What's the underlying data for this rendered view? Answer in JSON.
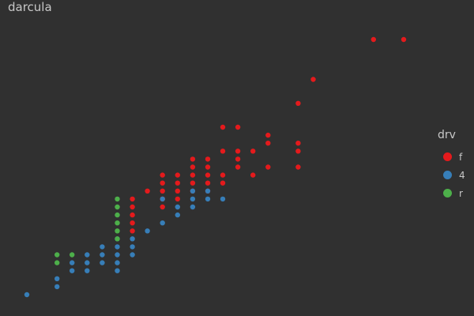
{
  "title": "darcula",
  "chart_data": {
    "type": "scatter",
    "title": "darcula",
    "xlabel": "",
    "ylabel": "",
    "xlim": [
      1.5,
      7.1
    ],
    "ylim": [
      9,
      45
    ],
    "grid": false,
    "legend": {
      "title": "drv",
      "position": "right",
      "entries": [
        {
          "label": "f",
          "color": "#e41a1c"
        },
        {
          "label": "4",
          "color": "#377eb8"
        },
        {
          "label": "r",
          "color": "#4daf4a"
        }
      ]
    },
    "series": [
      {
        "name": "f",
        "color": "#e41a1c",
        "points": [
          [
            6.0,
            41
          ],
          [
            6.4,
            41
          ],
          [
            5.2,
            36
          ],
          [
            5.0,
            33
          ],
          [
            4.0,
            30
          ],
          [
            4.2,
            30
          ],
          [
            4.6,
            29
          ],
          [
            4.6,
            28
          ],
          [
            5.0,
            28
          ],
          [
            4.0,
            27
          ],
          [
            4.2,
            27
          ],
          [
            4.4,
            27
          ],
          [
            5.0,
            27
          ],
          [
            3.6,
            26
          ],
          [
            3.8,
            26
          ],
          [
            4.2,
            26
          ],
          [
            3.6,
            25
          ],
          [
            3.8,
            25
          ],
          [
            4.2,
            25
          ],
          [
            4.6,
            25
          ],
          [
            5.0,
            25
          ],
          [
            3.2,
            24
          ],
          [
            3.4,
            24
          ],
          [
            3.6,
            24
          ],
          [
            3.8,
            24
          ],
          [
            4.0,
            24
          ],
          [
            4.4,
            24
          ],
          [
            3.2,
            23
          ],
          [
            3.4,
            23
          ],
          [
            3.6,
            23
          ],
          [
            3.8,
            23
          ],
          [
            4.0,
            23
          ],
          [
            3.0,
            22
          ],
          [
            3.2,
            22
          ],
          [
            3.4,
            22
          ],
          [
            3.6,
            22
          ],
          [
            3.8,
            22
          ],
          [
            2.8,
            21
          ],
          [
            3.2,
            21
          ],
          [
            3.4,
            21
          ],
          [
            2.8,
            20
          ],
          [
            3.2,
            20
          ],
          [
            2.8,
            19
          ],
          [
            2.8,
            18
          ],
          [
            2.8,
            17
          ],
          [
            3.2,
            21
          ]
        ]
      },
      {
        "name": "4",
        "color": "#377eb8",
        "points": [
          [
            3.6,
            22
          ],
          [
            3.8,
            22
          ],
          [
            3.2,
            21
          ],
          [
            3.6,
            21
          ],
          [
            3.8,
            21
          ],
          [
            4.0,
            21
          ],
          [
            3.4,
            20
          ],
          [
            3.6,
            20
          ],
          [
            3.4,
            19
          ],
          [
            3.2,
            18
          ],
          [
            3.0,
            17
          ],
          [
            2.6,
            16
          ],
          [
            2.8,
            16
          ],
          [
            2.4,
            15
          ],
          [
            2.6,
            15
          ],
          [
            2.8,
            15
          ],
          [
            2.2,
            14
          ],
          [
            2.4,
            14
          ],
          [
            2.6,
            14
          ],
          [
            2.8,
            14
          ],
          [
            2.0,
            13
          ],
          [
            2.2,
            13
          ],
          [
            2.4,
            13
          ],
          [
            2.6,
            13
          ],
          [
            2.0,
            12
          ],
          [
            2.2,
            12
          ],
          [
            2.6,
            12
          ],
          [
            1.8,
            11
          ],
          [
            1.8,
            10
          ],
          [
            1.4,
            9
          ]
        ]
      },
      {
        "name": "r",
        "color": "#4daf4a",
        "points": [
          [
            2.6,
            21
          ],
          [
            2.6,
            20
          ],
          [
            2.6,
            19
          ],
          [
            2.6,
            18
          ],
          [
            2.6,
            17
          ],
          [
            2.6,
            16
          ],
          [
            1.8,
            14
          ],
          [
            2.0,
            14
          ],
          [
            1.8,
            13
          ]
        ]
      }
    ]
  }
}
